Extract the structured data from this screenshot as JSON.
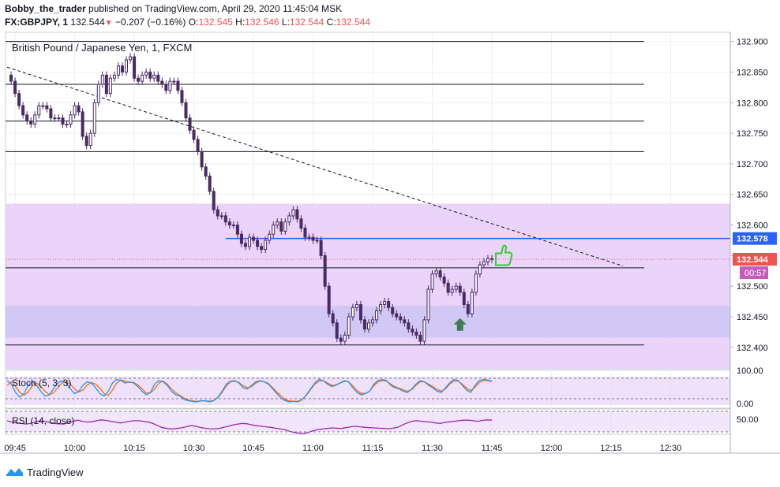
{
  "header": {
    "author": "Bobby_the_trader",
    "published_text": "published on TradingView.com, April 29, 2020 11:45:04 MSK",
    "symbol": "FX:GBPJPY, 1",
    "last": "132.544",
    "change": "−0.207 (−0.16%)",
    "o_label": "O:",
    "o_value": "132.545",
    "h_label": "H:",
    "h_value": "132.546",
    "l_label": "L:",
    "l_value": "132.544",
    "c_label": "C:",
    "c_value": "132.544"
  },
  "footer": {
    "brand": "TradingView"
  },
  "chart_data": {
    "type": "candlestick",
    "title": "British Pound / Japanese Yen, 1, FXCM",
    "ylim": [
      132.365,
      132.915
    ],
    "y_ticks": [
      "132.900",
      "132.850",
      "132.800",
      "132.750",
      "132.700",
      "132.650",
      "132.600",
      "132.550",
      "132.500",
      "132.450",
      "132.400"
    ],
    "x_ticks": [
      "09:45",
      "10:00",
      "10:15",
      "10:30",
      "10:45",
      "11:00",
      "11:15",
      "11:30",
      "11:45",
      "12:00",
      "12:15",
      "12:30"
    ],
    "x_tick_minutes": [
      -15,
      0,
      15,
      30,
      45,
      60,
      75,
      90,
      105,
      120,
      135,
      150
    ],
    "x_range_minutes": [
      -17.4,
      165
    ],
    "close_series": [
      [
        -17,
        132.845
      ],
      [
        -16,
        132.835
      ],
      [
        -15,
        132.815
      ],
      [
        -14,
        132.795
      ],
      [
        -13,
        132.78
      ],
      [
        -12,
        132.77
      ],
      [
        -11,
        132.765
      ],
      [
        -10,
        132.78
      ],
      [
        -9,
        132.795
      ],
      [
        -8,
        132.795
      ],
      [
        -7,
        132.79
      ],
      [
        -6,
        132.775
      ],
      [
        -5,
        132.775
      ],
      [
        -4,
        132.775
      ],
      [
        -3,
        132.765
      ],
      [
        -2,
        132.765
      ],
      [
        -1,
        132.78
      ],
      [
        0,
        132.795
      ],
      [
        1,
        132.785
      ],
      [
        2,
        132.745
      ],
      [
        3,
        132.73
      ],
      [
        4,
        132.75
      ],
      [
        5,
        132.8
      ],
      [
        6,
        132.83
      ],
      [
        7,
        132.845
      ],
      [
        8,
        132.815
      ],
      [
        9,
        132.84
      ],
      [
        10,
        132.845
      ],
      [
        11,
        132.86
      ],
      [
        12,
        132.85
      ],
      [
        13,
        132.87
      ],
      [
        14,
        132.875
      ],
      [
        15,
        132.84
      ],
      [
        16,
        132.835
      ],
      [
        17,
        132.845
      ],
      [
        18,
        132.85
      ],
      [
        19,
        132.84
      ],
      [
        20,
        132.845
      ],
      [
        21,
        132.835
      ],
      [
        22,
        132.83
      ],
      [
        23,
        132.82
      ],
      [
        24,
        132.835
      ],
      [
        25,
        132.835
      ],
      [
        26,
        132.82
      ],
      [
        27,
        132.8
      ],
      [
        28,
        132.775
      ],
      [
        29,
        132.755
      ],
      [
        30,
        132.74
      ],
      [
        31,
        132.72
      ],
      [
        32,
        132.695
      ],
      [
        33,
        132.68
      ],
      [
        34,
        132.655
      ],
      [
        35,
        132.625
      ],
      [
        36,
        132.615
      ],
      [
        37,
        132.615
      ],
      [
        38,
        132.605
      ],
      [
        39,
        132.6
      ],
      [
        40,
        132.6
      ],
      [
        41,
        132.585
      ],
      [
        42,
        132.57
      ],
      [
        43,
        132.565
      ],
      [
        44,
        132.58
      ],
      [
        45,
        132.575
      ],
      [
        46,
        132.565
      ],
      [
        47,
        132.56
      ],
      [
        48,
        132.575
      ],
      [
        49,
        132.585
      ],
      [
        50,
        132.6
      ],
      [
        51,
        132.605
      ],
      [
        52,
        132.59
      ],
      [
        53,
        132.605
      ],
      [
        54,
        132.615
      ],
      [
        55,
        132.625
      ],
      [
        56,
        132.61
      ],
      [
        57,
        132.595
      ],
      [
        58,
        132.58
      ],
      [
        59,
        132.58
      ],
      [
        60,
        132.575
      ],
      [
        61,
        132.575
      ],
      [
        62,
        132.55
      ],
      [
        63,
        132.5
      ],
      [
        64,
        132.455
      ],
      [
        65,
        132.44
      ],
      [
        66,
        132.415
      ],
      [
        67,
        132.41
      ],
      [
        68,
        132.42
      ],
      [
        69,
        132.45
      ],
      [
        70,
        132.465
      ],
      [
        71,
        132.47
      ],
      [
        72,
        132.445
      ],
      [
        73,
        132.43
      ],
      [
        74,
        132.44
      ],
      [
        75,
        132.445
      ],
      [
        76,
        132.46
      ],
      [
        77,
        132.47
      ],
      [
        78,
        132.475
      ],
      [
        79,
        132.465
      ],
      [
        80,
        132.455
      ],
      [
        81,
        132.45
      ],
      [
        82,
        132.445
      ],
      [
        83,
        132.44
      ],
      [
        84,
        132.43
      ],
      [
        85,
        132.425
      ],
      [
        86,
        132.42
      ],
      [
        87,
        132.41
      ],
      [
        88,
        132.445
      ],
      [
        89,
        132.495
      ],
      [
        90,
        132.52
      ],
      [
        91,
        132.525
      ],
      [
        92,
        132.515
      ],
      [
        93,
        132.505
      ],
      [
        94,
        132.49
      ],
      [
        95,
        132.495
      ],
      [
        96,
        132.5
      ],
      [
        97,
        132.49
      ],
      [
        98,
        132.47
      ],
      [
        99,
        132.455
      ],
      [
        100,
        132.49
      ],
      [
        101,
        132.52
      ],
      [
        102,
        132.535
      ],
      [
        103,
        132.54
      ],
      [
        104,
        132.545
      ],
      [
        105,
        132.544
      ]
    ],
    "price_levels": [
      132.9,
      132.83,
      132.77,
      132.72,
      132.53,
      132.404
    ],
    "blue_level": {
      "value": 132.578,
      "label": "132.578",
      "color": "#2962ff"
    },
    "last_price_label": {
      "value": 132.544,
      "label": "132.544",
      "color": "#ef5350"
    },
    "countdown_label": {
      "label": "00:57",
      "color": "#c75bbc"
    },
    "trendline": {
      "from": [
        -17,
        132.858
      ],
      "to": [
        138,
        132.533
      ],
      "style": "dashed"
    },
    "zones": [
      {
        "from": 132.635,
        "to": 132.363,
        "color": "#e6cdf9"
      },
      {
        "from": 132.468,
        "to": 132.416,
        "color": "#cdc6f5"
      }
    ],
    "annotations": [
      {
        "name": "up-arrow-icon",
        "minute": 97,
        "value": 132.44,
        "color": "#3f7b50"
      },
      {
        "name": "thumbs-up-icon",
        "minute": 106,
        "value": 132.546,
        "color": "#33cc33"
      }
    ],
    "stoch": {
      "label": "Stoch (5, 3, 3)",
      "ticks": [
        "100.00",
        "0.00"
      ],
      "k_color": "#2196f3",
      "d_color": "#ff6d00",
      "k": [
        90,
        75,
        40,
        20,
        35,
        70,
        85,
        70,
        45,
        25,
        30,
        55,
        80,
        90,
        80,
        55,
        35,
        45,
        70,
        85,
        80,
        60,
        35,
        25,
        45,
        80,
        95,
        90,
        80,
        85,
        80,
        65,
        45,
        30,
        40,
        75,
        90,
        85,
        70,
        45,
        30,
        25,
        10,
        5,
        2,
        0,
        5,
        5,
        0,
        5,
        20,
        45,
        75,
        88,
        90,
        80,
        60,
        55,
        70,
        85,
        90,
        85,
        75,
        55,
        35,
        15,
        5,
        0,
        2,
        0,
        10,
        30,
        55,
        80,
        95,
        90,
        75,
        65,
        70,
        80,
        90,
        85,
        60,
        40,
        30,
        35,
        45,
        75,
        90,
        95,
        90,
        70,
        60,
        55,
        45,
        40,
        55,
        75,
        90,
        85,
        70,
        60,
        45,
        40,
        60,
        80,
        95,
        90,
        70,
        50,
        40,
        70,
        90,
        95,
        93,
        88
      ],
      "d": [
        70,
        85,
        65,
        40,
        28,
        42,
        68,
        80,
        65,
        45,
        30,
        38,
        60,
        80,
        85,
        75,
        55,
        42,
        50,
        72,
        82,
        75,
        58,
        35,
        28,
        50,
        80,
        93,
        88,
        82,
        83,
        72,
        55,
        38,
        38,
        55,
        80,
        88,
        75,
        55,
        38,
        28,
        15,
        8,
        4,
        3,
        4,
        4,
        3,
        6,
        18,
        40,
        68,
        85,
        88,
        82,
        68,
        60,
        65,
        80,
        88,
        85,
        78,
        60,
        42,
        25,
        10,
        4,
        3,
        3,
        9,
        28,
        52,
        75,
        88,
        90,
        80,
        70,
        72,
        80,
        87,
        85,
        68,
        48,
        36,
        36,
        45,
        68,
        85,
        90,
        88,
        75,
        65,
        58,
        50,
        45,
        52,
        70,
        85,
        85,
        75,
        65,
        52,
        45,
        55,
        75,
        88,
        88,
        75,
        58,
        48,
        62,
        82,
        90,
        90,
        86
      ]
    },
    "rsi": {
      "label": "RSI (14, close)",
      "ticks": [
        "50.00"
      ],
      "color": "#9c27b0",
      "values": [
        60,
        55,
        52,
        50,
        48,
        50,
        55,
        60,
        58,
        54,
        50,
        49,
        48,
        52,
        58,
        62,
        58,
        55,
        56,
        60,
        63,
        61,
        58,
        55,
        52,
        54,
        58,
        60,
        60,
        58,
        55,
        50,
        42,
        35,
        32,
        30,
        32,
        34,
        38,
        42,
        40,
        36,
        33,
        31,
        30,
        32,
        36,
        40,
        45,
        48,
        50,
        49,
        45,
        42,
        40,
        38,
        36,
        33,
        30,
        28,
        22,
        18,
        15,
        14,
        18,
        24,
        28,
        30,
        32,
        34,
        33,
        32,
        35,
        38,
        40,
        38,
        36,
        35,
        34,
        33,
        32,
        31,
        33,
        36,
        45,
        52,
        58,
        60,
        58,
        56,
        55,
        52,
        50,
        54,
        56,
        58,
        60,
        62,
        62,
        60,
        58,
        61,
        63,
        62
      ]
    }
  }
}
